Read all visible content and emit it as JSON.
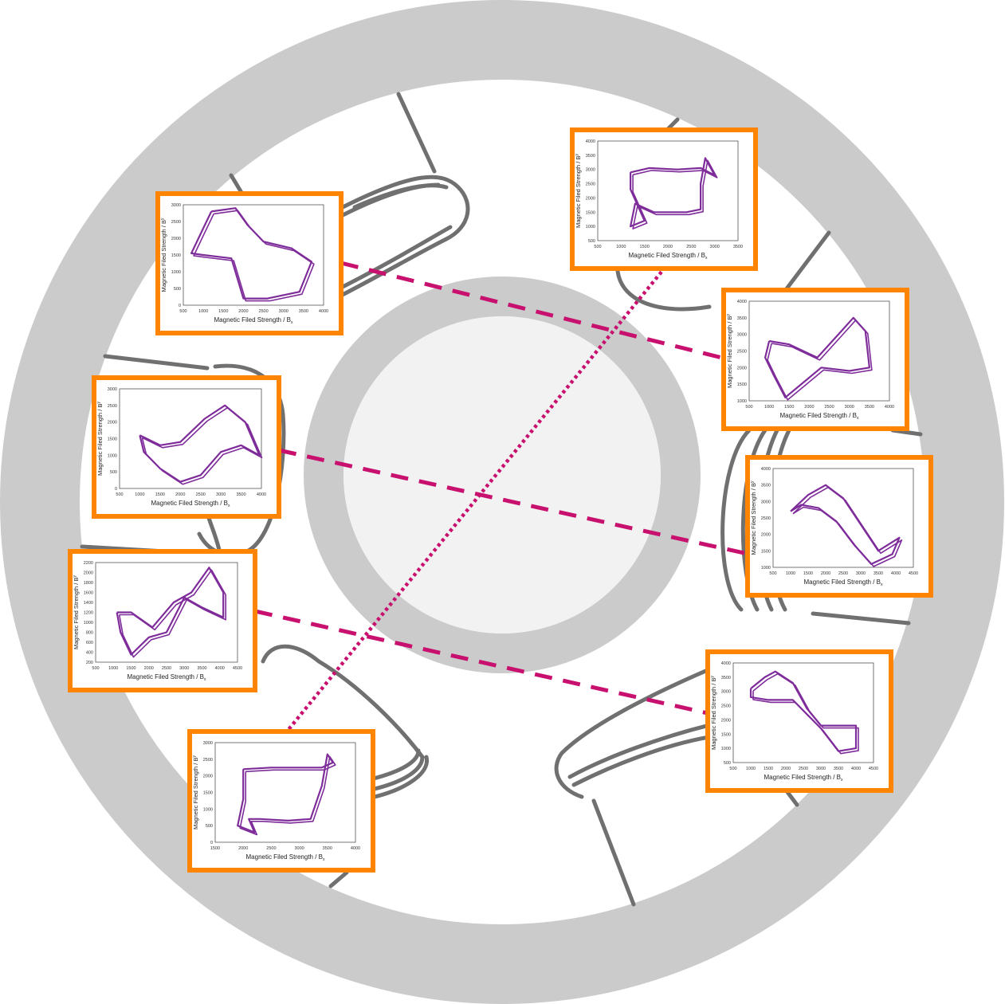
{
  "colors": {
    "ring": "#cbcbcb",
    "hub": "#f2f2f2",
    "stator_outline": "#707070",
    "panel_border": "#ff8400",
    "curve": "#7f2c9b",
    "connector": "#c8106e"
  },
  "panels": [
    {
      "id": "plot-top-left",
      "x_label": "Magnetic Filed Strength / B",
      "x_sub": "x",
      "y_label": "Magnetic Filed Strength / B",
      "y_sub": "y",
      "x_ticks": [
        "500",
        "1000",
        "1500",
        "2000",
        "2500",
        "3000",
        "3500",
        "4000"
      ],
      "y_ticks": [
        "0",
        "500",
        "1000",
        "1500",
        "2000",
        "2500",
        "3000"
      ],
      "xlim": [
        500,
        4000
      ],
      "ylim": [
        0,
        3000
      ],
      "curve": [
        [
          1200,
          2800
        ],
        [
          1800,
          2900
        ],
        [
          2100,
          2400
        ],
        [
          2500,
          1900
        ],
        [
          3200,
          1700
        ],
        [
          3700,
          1300
        ],
        [
          3400,
          400
        ],
        [
          2600,
          200
        ],
        [
          2000,
          200
        ],
        [
          1700,
          1400
        ],
        [
          1000,
          1500
        ],
        [
          700,
          1550
        ],
        [
          1000,
          2300
        ],
        [
          1200,
          2800
        ]
      ]
    },
    {
      "id": "plot-top-right",
      "x_label": "Magnetic Filed Strength / B",
      "x_sub": "x",
      "y_label": "Magnetic Filed Strength / B",
      "y_sub": "y",
      "x_ticks": [
        "500",
        "1000",
        "1500",
        "2000",
        "2500",
        "3000",
        "3500"
      ],
      "y_ticks": [
        "500",
        "1000",
        "1500",
        "2000",
        "2500",
        "3000",
        "3500",
        "4000"
      ],
      "xlim": [
        500,
        3500
      ],
      "ylim": [
        500,
        4000
      ],
      "curve": [
        [
          1200,
          2900
        ],
        [
          1600,
          3050
        ],
        [
          2200,
          3000
        ],
        [
          2700,
          3050
        ],
        [
          3000,
          2800
        ],
        [
          2800,
          3400
        ],
        [
          2700,
          2500
        ],
        [
          2700,
          1600
        ],
        [
          2400,
          1500
        ],
        [
          1700,
          1500
        ],
        [
          1300,
          1800
        ],
        [
          1200,
          1000
        ],
        [
          1500,
          1200
        ],
        [
          1200,
          2300
        ],
        [
          1200,
          2900
        ]
      ]
    },
    {
      "id": "plot-right-upper",
      "x_label": "Magnetic Filed Strength / B",
      "x_sub": "x",
      "y_label": "Magnetic Filed Strength / B",
      "y_sub": "y",
      "x_ticks": [
        "500",
        "1000",
        "1500",
        "2000",
        "2500",
        "3000",
        "3500",
        "4000"
      ],
      "y_ticks": [
        "1000",
        "1500",
        "2000",
        "2500",
        "3000",
        "3500",
        "4000"
      ],
      "xlim": [
        500,
        4000
      ],
      "ylim": [
        1000,
        4000
      ],
      "curve": [
        [
          1000,
          2800
        ],
        [
          1500,
          2700
        ],
        [
          2200,
          2300
        ],
        [
          2800,
          3100
        ],
        [
          3100,
          3500
        ],
        [
          3400,
          3100
        ],
        [
          3500,
          2000
        ],
        [
          3000,
          1900
        ],
        [
          2300,
          2000
        ],
        [
          1900,
          1600
        ],
        [
          1400,
          1100
        ],
        [
          1100,
          1800
        ],
        [
          900,
          2300
        ],
        [
          1000,
          2800
        ]
      ]
    },
    {
      "id": "plot-left-upper",
      "x_label": "Magnetic Filed Strength / B",
      "x_sub": "x",
      "y_label": "Magnetic Filed Strength / B",
      "y_sub": "y",
      "x_ticks": [
        "500",
        "1000",
        "1500",
        "2000",
        "2500",
        "3000",
        "3500",
        "4000"
      ],
      "y_ticks": [
        "0",
        "500",
        "1000",
        "1500",
        "2000",
        "2500",
        "3000"
      ],
      "xlim": [
        500,
        4000
      ],
      "ylim": [
        0,
        3000
      ],
      "curve": [
        [
          1000,
          1600
        ],
        [
          1500,
          1300
        ],
        [
          2000,
          1400
        ],
        [
          2600,
          2100
        ],
        [
          3100,
          2500
        ],
        [
          3600,
          2000
        ],
        [
          3950,
          1000
        ],
        [
          3500,
          1300
        ],
        [
          3000,
          1100
        ],
        [
          2500,
          400
        ],
        [
          2000,
          200
        ],
        [
          1500,
          600
        ],
        [
          1100,
          1100
        ],
        [
          1000,
          1600
        ]
      ]
    },
    {
      "id": "plot-right-middle",
      "x_label": "Magnetic Filed Strength / B",
      "x_sub": "x",
      "y_label": "Magnetic Filed Strength / B",
      "y_sub": "y",
      "x_ticks": [
        "500",
        "1000",
        "1500",
        "2000",
        "2500",
        "3000",
        "3500",
        "4000",
        "4500"
      ],
      "y_ticks": [
        "1000",
        "1500",
        "2000",
        "2500",
        "3000",
        "3500",
        "4000"
      ],
      "xlim": [
        500,
        4500
      ],
      "ylim": [
        1000,
        4000
      ],
      "curve": [
        [
          1000,
          2700
        ],
        [
          1500,
          3200
        ],
        [
          2000,
          3500
        ],
        [
          2500,
          3100
        ],
        [
          3000,
          2300
        ],
        [
          3500,
          1500
        ],
        [
          4100,
          1900
        ],
        [
          3900,
          1400
        ],
        [
          3300,
          1100
        ],
        [
          2800,
          1700
        ],
        [
          2300,
          2400
        ],
        [
          1800,
          2800
        ],
        [
          1300,
          2900
        ],
        [
          1000,
          2700
        ]
      ]
    },
    {
      "id": "plot-left-lower",
      "x_label": "Magnetic Filed Strength / B",
      "x_sub": "x",
      "y_label": "Magnetic Filed Strength / B",
      "y_sub": "y",
      "x_ticks": [
        "500",
        "1000",
        "1500",
        "2000",
        "2500",
        "3000",
        "3500",
        "4000",
        "4500"
      ],
      "y_ticks": [
        "200",
        "400",
        "600",
        "800",
        "1000",
        "1200",
        "1400",
        "1600",
        "1800",
        "2000",
        "2200"
      ],
      "xlim": [
        500,
        4500
      ],
      "ylim": [
        200,
        2200
      ],
      "curve": [
        [
          1100,
          1200
        ],
        [
          1500,
          1200
        ],
        [
          2100,
          900
        ],
        [
          2700,
          1400
        ],
        [
          3200,
          1600
        ],
        [
          3700,
          2100
        ],
        [
          4100,
          1600
        ],
        [
          4100,
          1100
        ],
        [
          3500,
          1300
        ],
        [
          3000,
          1500
        ],
        [
          2500,
          800
        ],
        [
          2000,
          700
        ],
        [
          1500,
          350
        ],
        [
          1200,
          800
        ],
        [
          1100,
          1200
        ]
      ]
    },
    {
      "id": "plot-right-lower",
      "x_label": "Magnetic Filed Strength / B",
      "x_sub": "x",
      "y_label": "Magnetic Filed Strength / B",
      "y_sub": "y",
      "x_ticks": [
        "500",
        "1000",
        "1500",
        "2000",
        "2500",
        "3000",
        "3500",
        "4000",
        "4500"
      ],
      "y_ticks": [
        "500",
        "1000",
        "1500",
        "2000",
        "2500",
        "3000",
        "3500",
        "4000"
      ],
      "xlim": [
        500,
        4500
      ],
      "ylim": [
        500,
        4000
      ],
      "curve": [
        [
          1000,
          3100
        ],
        [
          1400,
          3500
        ],
        [
          1700,
          3700
        ],
        [
          2200,
          3300
        ],
        [
          2600,
          2400
        ],
        [
          3000,
          1800
        ],
        [
          4000,
          1800
        ],
        [
          4000,
          1000
        ],
        [
          3500,
          900
        ],
        [
          3000,
          1700
        ],
        [
          2600,
          2200
        ],
        [
          2200,
          2700
        ],
        [
          1500,
          2700
        ],
        [
          1000,
          2800
        ],
        [
          1000,
          3100
        ]
      ]
    },
    {
      "id": "plot-bottom",
      "x_label": "Magnetic Filed Strength / B",
      "x_sub": "x",
      "y_label": "Magnetic Filed Strength / B",
      "y_sub": "y",
      "x_ticks": [
        "1500",
        "2000",
        "2500",
        "3000",
        "3500",
        "4000"
      ],
      "y_ticks": [
        "0",
        "500",
        "1000",
        "1500",
        "2000",
        "2500",
        "3000"
      ],
      "xlim": [
        1500,
        4000
      ],
      "ylim": [
        0,
        3000
      ],
      "curve": [
        [
          2000,
          2200
        ],
        [
          2500,
          2250
        ],
        [
          3000,
          2250
        ],
        [
          3400,
          2250
        ],
        [
          3600,
          2400
        ],
        [
          3500,
          2650
        ],
        [
          3400,
          1700
        ],
        [
          3200,
          700
        ],
        [
          2800,
          650
        ],
        [
          2300,
          700
        ],
        [
          2100,
          700
        ],
        [
          2200,
          300
        ],
        [
          1900,
          500
        ],
        [
          2000,
          1300
        ],
        [
          2000,
          2200
        ]
      ]
    }
  ]
}
